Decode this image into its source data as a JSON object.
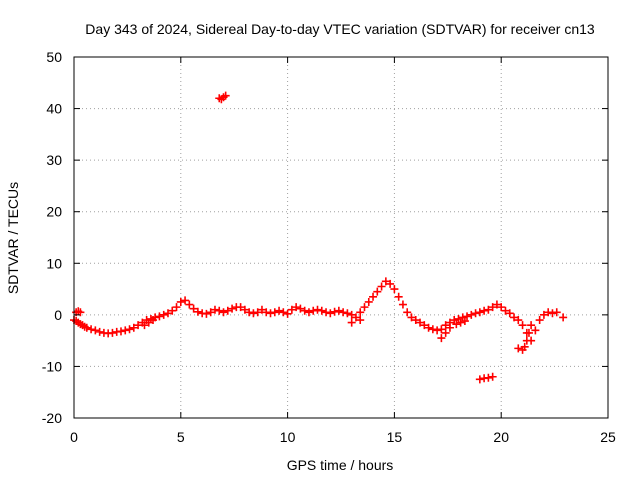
{
  "chart_data": {
    "type": "scatter",
    "title": "Day 343 of 2024, Sidereal Day-to-day VTEC variation (SDTVAR) for receiver cn13",
    "xlabel": "GPS time / hours",
    "ylabel": "SDTVAR / TECUs",
    "xlim": [
      0,
      25
    ],
    "ylim": [
      -20,
      50
    ],
    "xticks": [
      0,
      5,
      10,
      15,
      20,
      25
    ],
    "yticks": [
      -20,
      -10,
      0,
      10,
      20,
      30,
      40,
      50
    ],
    "grid": true,
    "marker": "+",
    "series": [
      {
        "name": "SDTVAR",
        "color": "#ff0000",
        "x": [
          0.0,
          0.1,
          0.2,
          0.3,
          0.4,
          0.5,
          0.6,
          0.8,
          1.0,
          1.2,
          1.4,
          1.6,
          1.8,
          2.0,
          2.2,
          2.4,
          2.6,
          2.8,
          3.0,
          3.2,
          3.4,
          3.6,
          3.8,
          4.0,
          4.2,
          4.4,
          4.6,
          4.8,
          5.0,
          5.2,
          5.4,
          5.6,
          5.8,
          6.0,
          6.2,
          6.4,
          6.6,
          6.8,
          7.0,
          7.2,
          7.4,
          7.6,
          7.8,
          8.0,
          8.2,
          8.4,
          8.6,
          8.8,
          9.0,
          9.2,
          9.4,
          9.6,
          9.8,
          10.0,
          10.2,
          10.4,
          10.6,
          10.8,
          11.0,
          11.2,
          11.4,
          11.6,
          11.8,
          12.0,
          12.2,
          12.4,
          12.6,
          12.8,
          13.0,
          13.2,
          13.4,
          13.6,
          13.8,
          14.0,
          14.2,
          14.4,
          14.6,
          14.8,
          15.0,
          15.2,
          15.4,
          15.6,
          15.8,
          16.0,
          16.2,
          16.4,
          16.6,
          16.8,
          17.0,
          17.2,
          17.4,
          17.6,
          17.8,
          18.0,
          18.2,
          18.4,
          18.6,
          18.8,
          19.0,
          19.2,
          19.4,
          19.6,
          19.8,
          20.0,
          20.2,
          20.4,
          20.6,
          20.8,
          21.0,
          21.2,
          21.4,
          21.6,
          21.8,
          22.0,
          22.2,
          22.4,
          22.6,
          22.9,
          6.8,
          6.9,
          7.0,
          7.1,
          19.0,
          19.2,
          19.4,
          19.6,
          0.1,
          0.2,
          0.3,
          20.8,
          21.0,
          21.1,
          21.2,
          21.3,
          21.4,
          13.0,
          13.4,
          3.3,
          3.5,
          3.7,
          17.2,
          17.4,
          17.6,
          17.9,
          18.1,
          18.3
        ],
        "y": [
          -1.0,
          -1.2,
          -1.5,
          -1.8,
          -2.0,
          -2.3,
          -2.5,
          -2.8,
          -3.0,
          -3.3,
          -3.5,
          -3.6,
          -3.5,
          -3.3,
          -3.2,
          -3.0,
          -2.8,
          -2.5,
          -2.0,
          -1.5,
          -1.0,
          -0.8,
          -0.5,
          -0.3,
          0.0,
          0.3,
          0.8,
          1.5,
          2.5,
          2.8,
          2.0,
          1.2,
          0.6,
          0.3,
          0.2,
          0.5,
          1.0,
          0.8,
          0.5,
          0.8,
          1.2,
          1.5,
          1.5,
          1.0,
          0.5,
          0.3,
          0.5,
          1.0,
          0.5,
          0.3,
          0.5,
          0.8,
          0.5,
          0.2,
          1.0,
          1.5,
          1.2,
          0.8,
          0.5,
          0.8,
          1.0,
          0.8,
          0.5,
          0.3,
          0.6,
          0.8,
          0.5,
          0.3,
          0.0,
          -0.5,
          0.5,
          1.5,
          2.5,
          3.5,
          4.5,
          5.5,
          6.5,
          6.0,
          5.0,
          3.5,
          2.0,
          0.5,
          -0.5,
          -1.0,
          -1.5,
          -2.0,
          -2.5,
          -2.8,
          -3.0,
          -2.8,
          -2.0,
          -1.5,
          -1.0,
          -0.8,
          -0.5,
          -0.3,
          0.0,
          0.3,
          0.5,
          0.8,
          1.0,
          1.5,
          2.0,
          1.5,
          0.8,
          0.3,
          -0.5,
          -1.0,
          -2.0,
          -3.5,
          -5.0,
          -3.0,
          -1.0,
          0.0,
          0.5,
          0.3,
          0.5,
          -0.5,
          42.0,
          41.8,
          42.2,
          42.5,
          -12.5,
          -12.3,
          -12.2,
          -12.0,
          0.5,
          0.7,
          0.5,
          -6.5,
          -6.8,
          -6.2,
          -5.0,
          -3.5,
          -2.0,
          -1.5,
          -1.0,
          -2.0,
          -1.5,
          -1.0,
          -4.5,
          -3.5,
          -2.5,
          -1.8,
          -1.5,
          -1.2
        ]
      }
    ]
  }
}
